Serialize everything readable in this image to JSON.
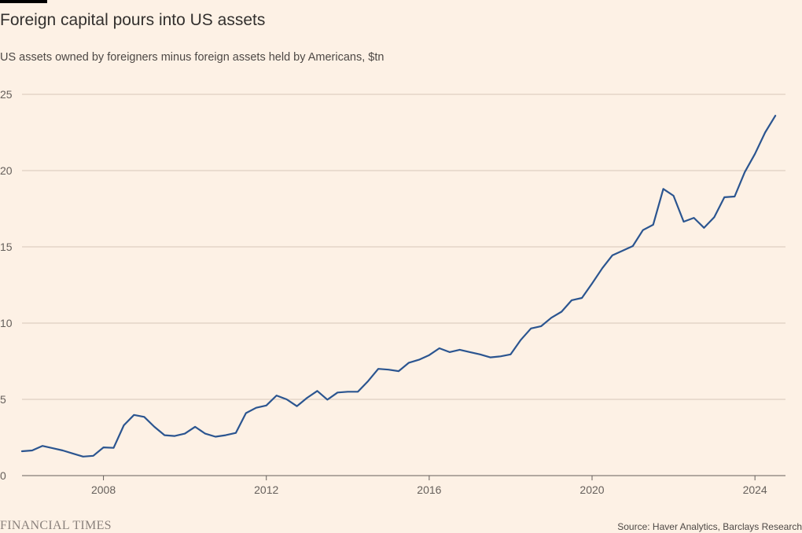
{
  "title": "Foreign capital pours into US assets",
  "subtitle": "US assets owned by foreigners minus foreign assets held by Americans, $tn",
  "source": "Source: Haver Analytics, Barclays Research",
  "brand": "FINANCIAL TIMES",
  "colors": {
    "background": "#fdf1e5",
    "line": "#2b5590",
    "grid": "#d6c7b9",
    "axis": "#66605c"
  },
  "chart_data": {
    "type": "line",
    "xlabel": "",
    "ylabel": "",
    "xlim": [
      2006.0,
      2024.75
    ],
    "ylim": [
      0,
      25
    ],
    "y_ticks": [
      0,
      5,
      10,
      15,
      20,
      25
    ],
    "x_ticks": [
      2008,
      2012,
      2016,
      2020,
      2024
    ],
    "grid": true,
    "legend": "none",
    "series": [
      {
        "x": [
          2006.0,
          2006.25,
          2006.5,
          2006.75,
          2007.0,
          2007.25,
          2007.5,
          2007.75,
          2008.0,
          2008.25,
          2008.5,
          2008.75,
          2009.0,
          2009.25,
          2009.5,
          2009.75,
          2010.0,
          2010.25,
          2010.5,
          2010.75,
          2011.0,
          2011.25,
          2011.5,
          2011.75,
          2012.0,
          2012.25,
          2012.5,
          2012.75,
          2013.0,
          2013.25,
          2013.5,
          2013.75,
          2014.0,
          2014.25,
          2014.5,
          2014.75,
          2015.0,
          2015.25,
          2015.5,
          2015.75,
          2016.0,
          2016.25,
          2016.5,
          2016.75,
          2017.0,
          2017.25,
          2017.5,
          2017.75,
          2018.0,
          2018.25,
          2018.5,
          2018.75,
          2019.0,
          2019.25,
          2019.5,
          2019.75,
          2020.0,
          2020.25,
          2020.5,
          2020.75,
          2021.0,
          2021.25,
          2021.5,
          2021.75,
          2022.0,
          2022.25,
          2022.5,
          2022.75,
          2023.0,
          2023.25,
          2023.5,
          2023.75,
          2024.0,
          2024.25,
          2024.5
        ],
        "values": [
          1.6,
          1.65,
          1.95,
          1.8,
          1.65,
          1.45,
          1.25,
          1.3,
          1.85,
          1.82,
          3.3,
          3.98,
          3.85,
          3.2,
          2.65,
          2.6,
          2.75,
          3.2,
          2.75,
          2.55,
          2.65,
          2.8,
          4.1,
          4.45,
          4.6,
          5.25,
          5.0,
          4.55,
          5.1,
          5.55,
          4.98,
          5.45,
          5.5,
          5.5,
          6.2,
          7.0,
          6.95,
          6.85,
          7.4,
          7.6,
          7.9,
          8.35,
          8.1,
          8.25,
          8.1,
          7.95,
          7.75,
          7.82,
          7.95,
          8.9,
          9.65,
          9.8,
          10.35,
          10.75,
          11.5,
          11.65,
          12.6,
          13.6,
          14.45,
          14.75,
          15.05,
          16.1,
          16.45,
          18.8,
          18.35,
          16.65,
          16.9,
          16.25,
          16.95,
          18.25,
          18.3,
          19.9,
          21.1,
          22.5,
          23.6
        ]
      }
    ]
  }
}
